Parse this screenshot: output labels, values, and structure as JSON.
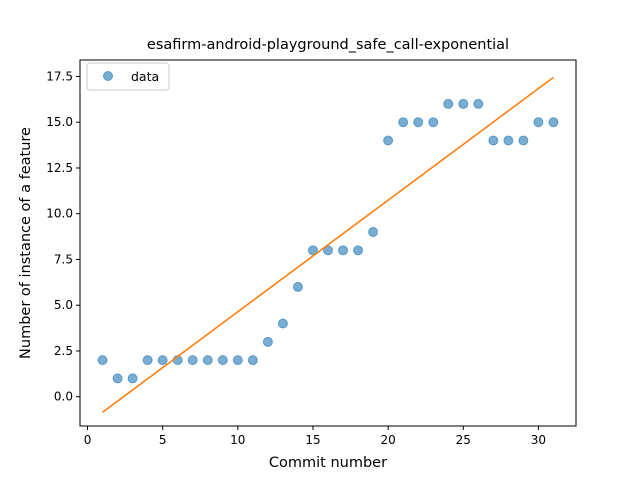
{
  "chart_data": {
    "type": "scatter",
    "title": "esafirm-android-playground_safe_call-exponential",
    "xlabel": "Commit number",
    "ylabel": "Number of instance of a feature",
    "xlim": [
      -0.5,
      32.5
    ],
    "ylim": [
      -1.6,
      18.4
    ],
    "xticks": [
      0,
      5,
      10,
      15,
      20,
      25,
      30
    ],
    "xtick_labels": [
      "0",
      "5",
      "10",
      "15",
      "20",
      "25",
      "30"
    ],
    "yticks": [
      0.0,
      2.5,
      5.0,
      7.5,
      10.0,
      12.5,
      15.0,
      17.5
    ],
    "ytick_labels": [
      "0.0",
      "2.5",
      "5.0",
      "7.5",
      "10.0",
      "12.5",
      "15.0",
      "17.5"
    ],
    "grid": false,
    "legend": {
      "position": "top-left",
      "label": "data"
    },
    "series": [
      {
        "name": "data",
        "kind": "scatter",
        "color": "#1f77b4",
        "x": [
          1,
          2,
          3,
          4,
          5,
          6,
          7,
          8,
          9,
          10,
          11,
          12,
          13,
          14,
          15,
          16,
          17,
          18,
          19,
          20,
          21,
          22,
          23,
          24,
          25,
          26,
          27,
          28,
          29,
          30,
          31
        ],
        "y": [
          2,
          1,
          1,
          2,
          2,
          2,
          2,
          2,
          2,
          2,
          2,
          3,
          4,
          6,
          8,
          8,
          8,
          8,
          9,
          14,
          15,
          15,
          15,
          16,
          16,
          16,
          14,
          14,
          14,
          15,
          15
        ]
      },
      {
        "kind": "line",
        "color": "#ff7f0e",
        "x": [
          1,
          31
        ],
        "y": [
          -0.85,
          17.45
        ]
      }
    ]
  }
}
